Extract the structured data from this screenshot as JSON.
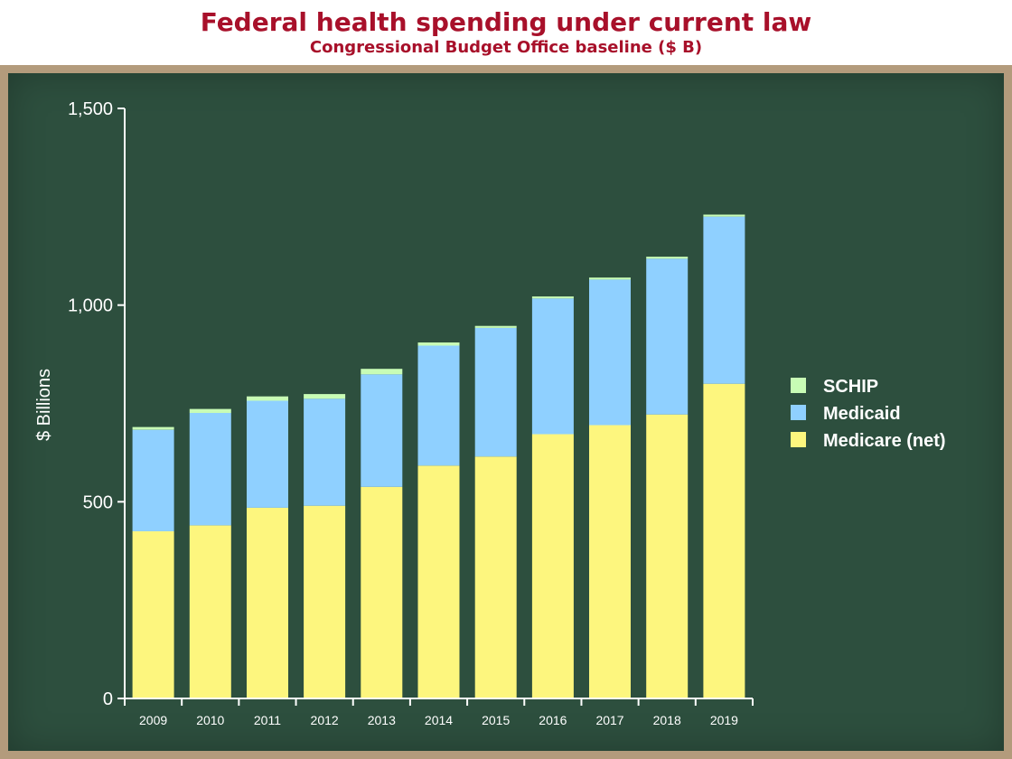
{
  "title": "Federal health spending under current law",
  "subtitle": "Congressional Budget Office baseline ($ B)",
  "chart_data": {
    "type": "bar",
    "stacked": true,
    "title": "Federal health spending under current law",
    "subtitle": "Congressional Budget Office baseline ($ B)",
    "xlabel": "",
    "ylabel": "$ Billions",
    "ylim": [
      0,
      1500
    ],
    "yticks": [
      0,
      500,
      1000,
      1500
    ],
    "ytick_labels": [
      "0",
      "500",
      "1,000",
      "1,500"
    ],
    "grid": false,
    "legend_position": "right",
    "categories": [
      "2009",
      "2010",
      "2011",
      "2012",
      "2013",
      "2014",
      "2015",
      "2016",
      "2017",
      "2018",
      "2019"
    ],
    "series": [
      {
        "name": "Medicare (net)",
        "color": "#fdf67e",
        "values": [
          425,
          440,
          485,
          490,
          538,
          592,
          615,
          672,
          695,
          722,
          800
        ]
      },
      {
        "name": "Medicaid",
        "color": "#8fd0ff",
        "values": [
          258,
          286,
          272,
          272,
          286,
          305,
          327,
          345,
          370,
          396,
          425
        ]
      },
      {
        "name": "SCHIP",
        "color": "#c8fcb5",
        "values": [
          7,
          10,
          11,
          12,
          14,
          8,
          5,
          5,
          5,
          5,
          5
        ]
      }
    ],
    "legend_order": [
      "SCHIP",
      "Medicaid",
      "Medicare (net)"
    ]
  }
}
